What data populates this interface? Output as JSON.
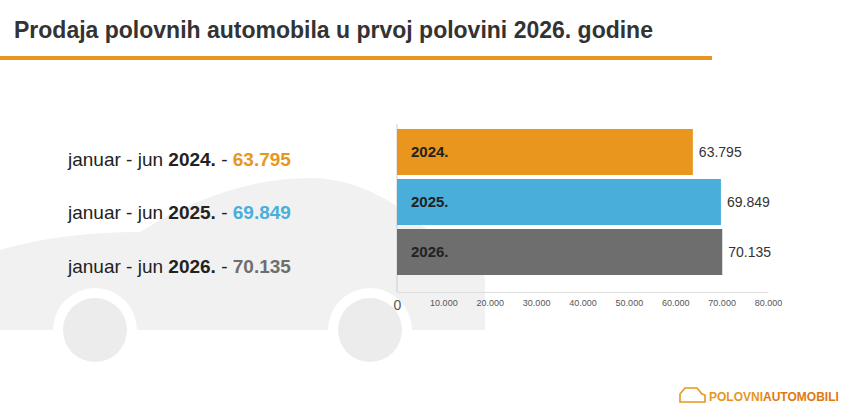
{
  "chart_data": {
    "type": "bar",
    "orientation": "horizontal",
    "title": "Prodaja polovnih automobila u prvoj polovini 2026. godine",
    "categories": [
      "2024.",
      "2025.",
      "2026."
    ],
    "values": [
      63795,
      69849,
      70135
    ],
    "value_labels": [
      "63.795",
      "69.849",
      "70.135"
    ],
    "colors": [
      "#e8961e",
      "#4aaedb",
      "#6e6e6e"
    ],
    "data_labels": true,
    "grid": false,
    "xlim": [
      0,
      80000
    ],
    "xticks": [
      0,
      {
        "value": 10000,
        "label": "10.000"
      },
      {
        "value": 20000,
        "label": "20.000"
      },
      {
        "value": 30000,
        "label": "30.000"
      },
      {
        "value": 40000,
        "label": "40.000"
      },
      {
        "value": 50000,
        "label": "50.000"
      },
      {
        "value": 60000,
        "label": "60.000"
      },
      {
        "value": 70000,
        "label": "70.000"
      },
      {
        "value": 80000,
        "label": "80.000"
      }
    ],
    "annotations": [
      [
        "januar - jun",
        "2024.",
        "-",
        "63.795"
      ],
      [
        "januar - jun",
        "2025.",
        "-",
        "69.849"
      ],
      [
        "januar - jun",
        "2026.",
        "-",
        "70.135"
      ]
    ],
    "source": [
      "POLOVNI",
      "AUTOMOBILI"
    ]
  }
}
